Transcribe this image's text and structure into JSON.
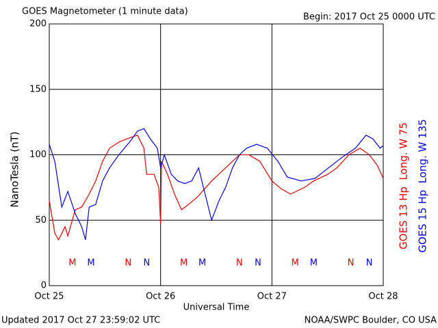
{
  "chart_data": {
    "type": "line",
    "title": "GOES Magnetometer (1 minute data)",
    "begin": "Begin:  2017 Oct 25 0000 UTC",
    "ylabel": "NanoTesla (nT)",
    "xlabel": "Universal Time",
    "updated": "Updated 2017 Oct 27 23:59:02 UTC",
    "credit": "NOAA/SWPC Boulder, CO USA",
    "xlim": [
      0,
      72
    ],
    "xticks": [
      {
        "value": 0,
        "label": "Oct 25"
      },
      {
        "value": 24,
        "label": "Oct 26"
      },
      {
        "value": 48,
        "label": "Oct 27"
      },
      {
        "value": 72,
        "label": "Oct 28"
      }
    ],
    "ylim": [
      0,
      200
    ],
    "yticks": [
      0,
      50,
      100,
      150,
      200
    ],
    "grid": true,
    "series": [
      {
        "name": "GOES 13 Hp  Long. W 75",
        "color": "#e00000",
        "x": [
          0,
          1.2,
          2,
          3.4,
          4,
          5.6,
          7,
          8.6,
          10,
          11.5,
          13,
          15.2,
          17.4,
          19,
          20.4,
          21,
          22.6,
          23.6,
          24,
          24.2,
          25.5,
          27,
          28.5,
          30,
          32,
          35,
          38,
          41,
          43,
          45.4,
          48,
          50,
          52,
          55,
          57,
          60,
          62,
          64.6,
          67,
          69,
          70.7,
          72
        ],
        "values": [
          65,
          40,
          35,
          45,
          38,
          58,
          60,
          70,
          80,
          95,
          105,
          110,
          113,
          115,
          105,
          85,
          85,
          75,
          47,
          95,
          85,
          70,
          58,
          62,
          68,
          80,
          90,
          100,
          100,
          95,
          80,
          74,
          70,
          75,
          80,
          85,
          90,
          100,
          105,
          100,
          92,
          82
        ]
      },
      {
        "name": "GOES 15 Hp  Long. W 135",
        "color": "#0000e0",
        "x": [
          0,
          1.2,
          2.7,
          4,
          5.6,
          7,
          7.8,
          8.6,
          10,
          11.5,
          13,
          15,
          17.4,
          19,
          20.4,
          21.8,
          23.3,
          24,
          24.8,
          26.3,
          27.7,
          29.2,
          30.7,
          32.2,
          33.6,
          35,
          36.6,
          38,
          39.5,
          41,
          42.5,
          44.7,
          47,
          49.3,
          51.3,
          54.3,
          57.3,
          60.2,
          63.1,
          66,
          68.3,
          69.8,
          71.3,
          72
        ],
        "values": [
          108,
          95,
          60,
          72,
          55,
          45,
          35,
          60,
          62,
          80,
          90,
          100,
          110,
          118,
          120,
          112,
          105,
          90,
          100,
          85,
          80,
          78,
          80,
          90,
          70,
          50,
          65,
          75,
          90,
          100,
          105,
          108,
          105,
          95,
          83,
          80,
          82,
          90,
          98,
          105,
          115,
          112,
          105,
          107
        ]
      }
    ],
    "markers": [
      {
        "label": "M",
        "x": 5,
        "color": "#e00000"
      },
      {
        "label": "M",
        "x": 9,
        "color": "#0000e0"
      },
      {
        "label": "N",
        "x": 17,
        "color": "#e00000"
      },
      {
        "label": "N",
        "x": 21,
        "color": "#0000e0"
      },
      {
        "label": "M",
        "x": 29,
        "color": "#e00000"
      },
      {
        "label": "M",
        "x": 33,
        "color": "#0000e0"
      },
      {
        "label": "N",
        "x": 41,
        "color": "#e00000"
      },
      {
        "label": "N",
        "x": 45,
        "color": "#0000e0"
      },
      {
        "label": "M",
        "x": 53,
        "color": "#e00000"
      },
      {
        "label": "M",
        "x": 57,
        "color": "#0000e0"
      },
      {
        "label": "N",
        "x": 65,
        "color": "#e00000"
      },
      {
        "label": "N",
        "x": 69,
        "color": "#0000e0"
      }
    ]
  }
}
